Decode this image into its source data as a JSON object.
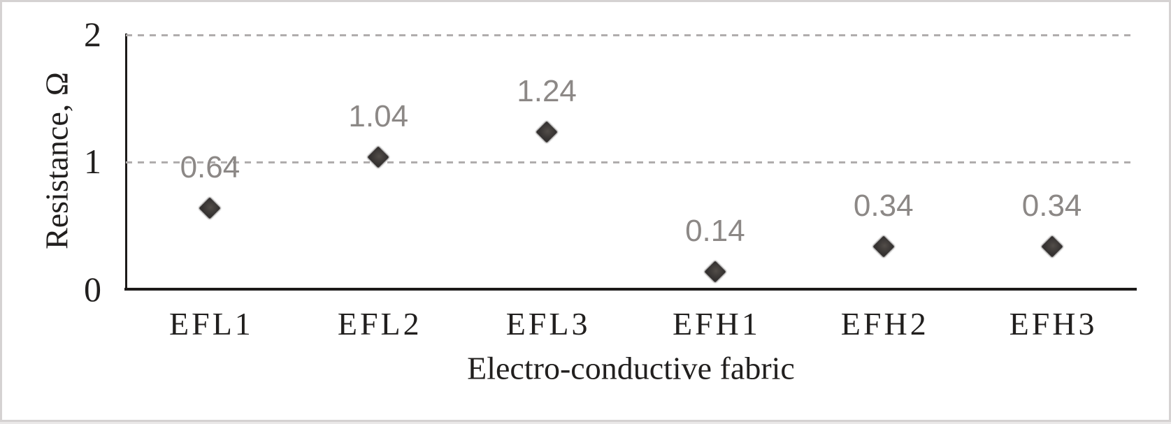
{
  "colors": {
    "background": "#ffffff",
    "border": "#d5d2d2",
    "page": "#eae8e8",
    "axis": "#1c1a19",
    "text": "#211f1e",
    "data_label": "#8c8886",
    "gridline": "#b0adad",
    "marker": "#343130",
    "marker_center": "#524d49"
  },
  "chart_data": {
    "type": "scatter",
    "title": "",
    "xlabel": "Electro-conductive fabric",
    "ylabel": "Resistance, Ω",
    "categories": [
      "EFL1",
      "EFL2",
      "EFL3",
      "EFH1",
      "EFH2",
      "EFH3"
    ],
    "values": [
      0.64,
      1.04,
      1.24,
      0.14,
      0.34,
      0.34
    ],
    "point_labels": [
      "0.64",
      "1.04",
      "1.24",
      "0.14",
      "0.34",
      "0.34"
    ],
    "ylim": [
      0,
      2
    ],
    "yticks": [
      0,
      1,
      2
    ],
    "ytick_labels": [
      "0",
      "1",
      "2"
    ],
    "gridline_values": [
      1,
      2
    ],
    "grid": "horizontal-dashed",
    "marker": "diamond",
    "legend": "none"
  }
}
